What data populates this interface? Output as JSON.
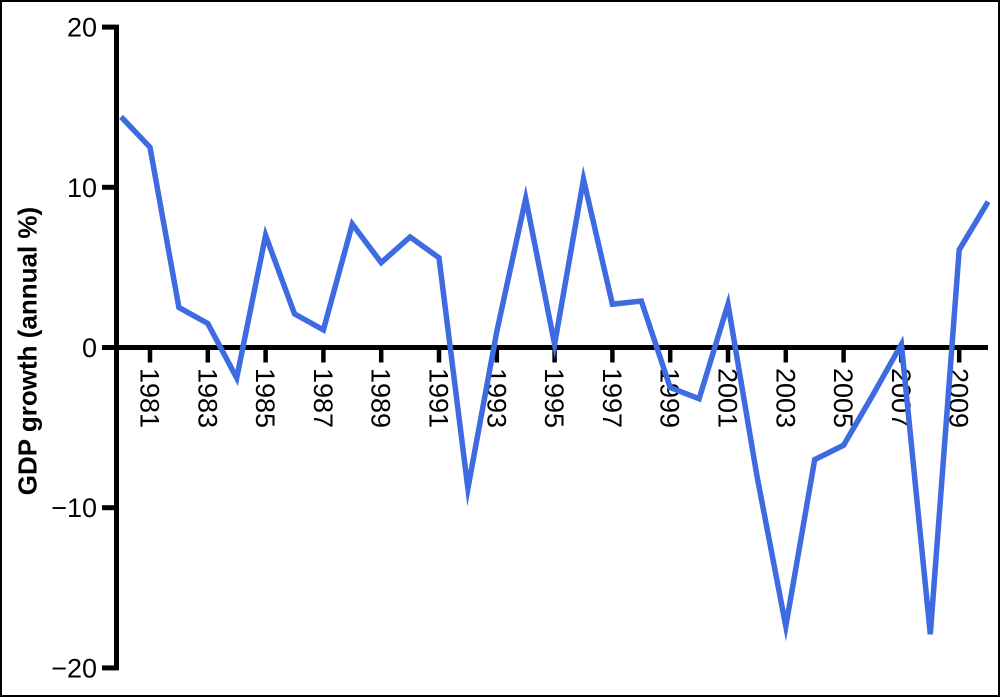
{
  "window": {
    "background_color": "#ffffff",
    "frame_color": "#000000"
  },
  "chart_data": {
    "type": "line",
    "ylabel": "GDP growth (annual %)",
    "xlabel": "",
    "x": [
      1980,
      1981,
      1982,
      1983,
      1984,
      1985,
      1986,
      1987,
      1988,
      1989,
      1990,
      1991,
      1992,
      1993,
      1994,
      1995,
      1996,
      1997,
      1998,
      1999,
      2000,
      2001,
      2002,
      2003,
      2004,
      2005,
      2006,
      2007,
      2008,
      2009,
      2010
    ],
    "series": [
      {
        "name": "GDP growth (annual %)",
        "color": "#3e6be1",
        "values": [
          14.4,
          12.5,
          2.5,
          1.5,
          -1.9,
          7.0,
          2.1,
          1.1,
          7.7,
          5.3,
          6.9,
          5.6,
          -8.8,
          1.0,
          9.3,
          0.2,
          10.5,
          2.7,
          2.9,
          -2.5,
          -3.2,
          2.7,
          -8.0,
          -17.4,
          -7.0,
          -6.1,
          -3.0,
          0.2,
          -17.9,
          6.1,
          9.1
        ]
      }
    ],
    "xlim": [
      1980,
      2010
    ],
    "ylim": [
      -20,
      20
    ],
    "yticks": [
      20,
      10,
      0,
      -10,
      -20
    ],
    "ytick_labels": [
      "20",
      "10",
      "0",
      "−10",
      "−20"
    ],
    "xticks": [
      1981,
      1983,
      1985,
      1987,
      1989,
      1991,
      1993,
      1995,
      1997,
      1999,
      2001,
      2003,
      2005,
      2007,
      2009
    ],
    "xtick_labels": [
      "1981",
      "1983",
      "1985",
      "1987",
      "1989",
      "1991",
      "1993",
      "1995",
      "1997",
      "1999",
      "2001",
      "2003",
      "2005",
      "2007",
      "2009"
    ],
    "xtick_rotation_deg": 90,
    "grid": false,
    "legend": false,
    "axis_color": "#000000",
    "zero_line_as_x_axis": true
  }
}
